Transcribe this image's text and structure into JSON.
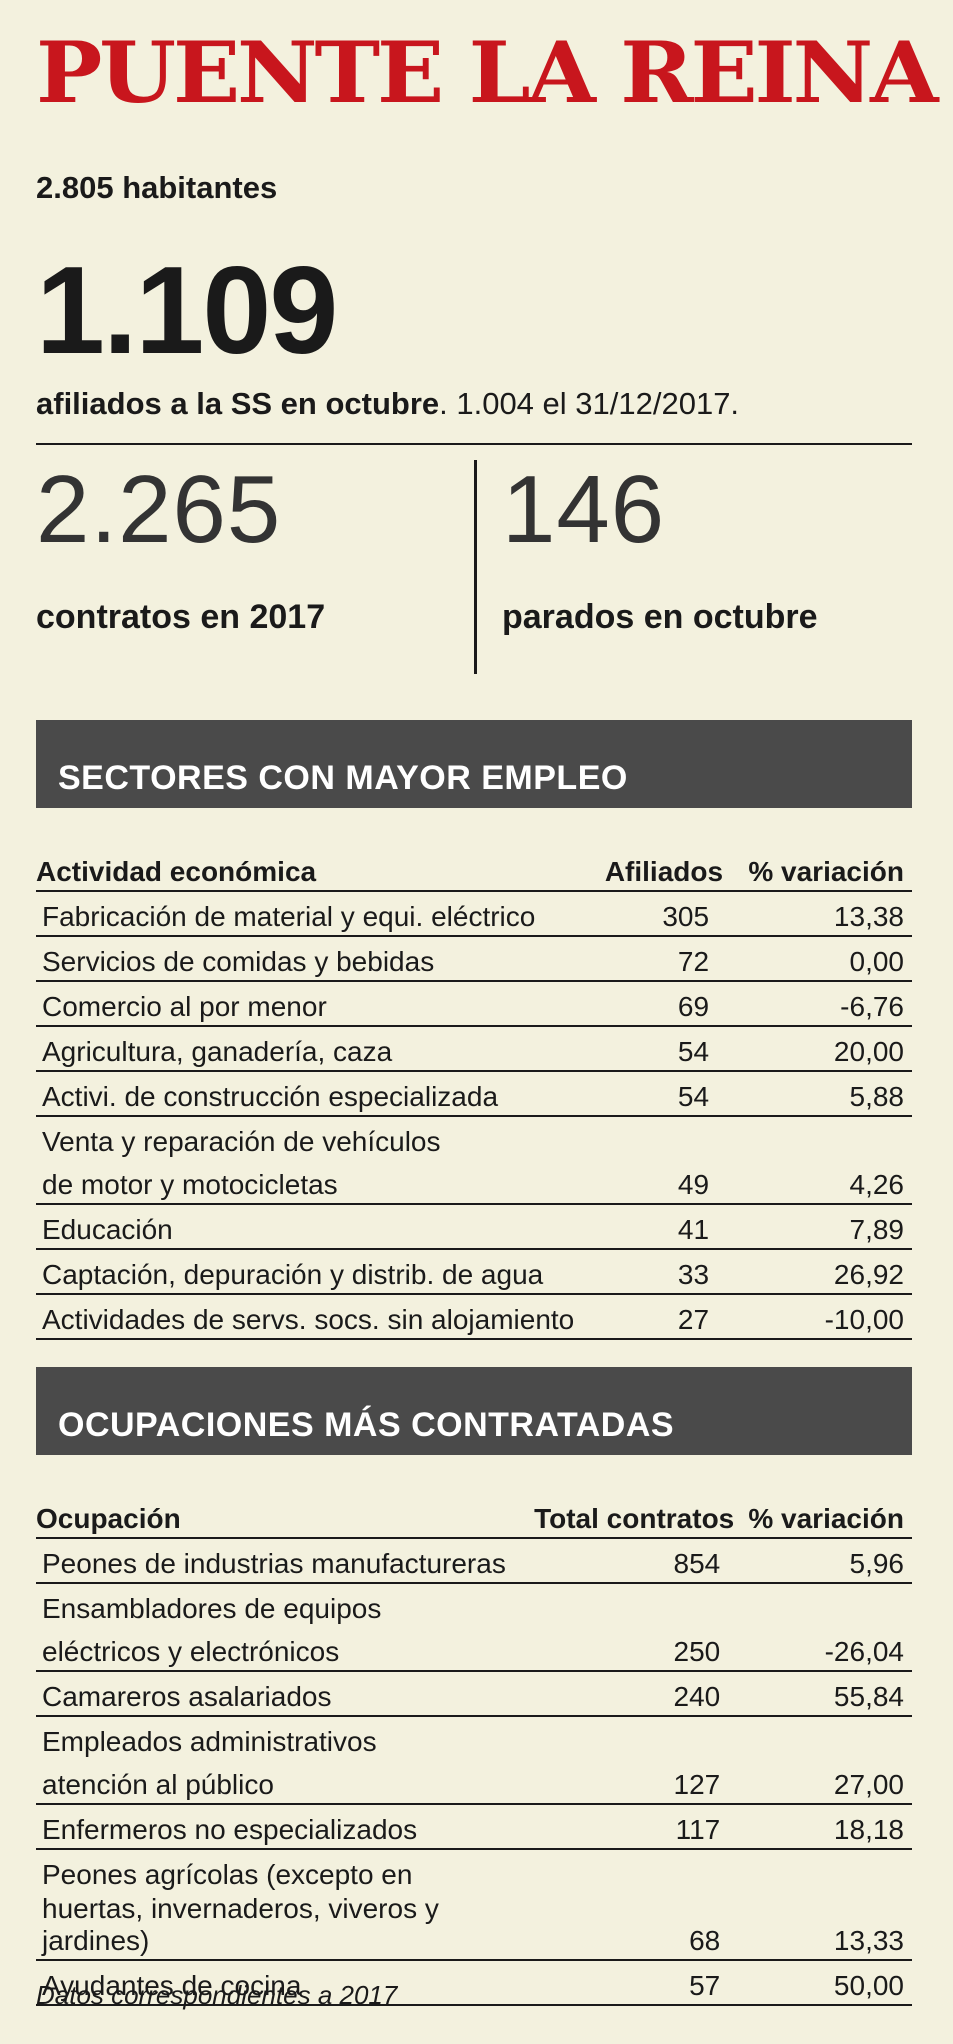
{
  "header": {
    "town": "PUENTE LA REINA",
    "habitantes": "2.805 habitantes",
    "afiliados_big": "1.109",
    "afiliados_bold": "afiliados  a la SS en octubre",
    "afiliados_rest": ". 1.004  el 31/12/2017."
  },
  "stats": {
    "contratos_value": "2.265",
    "contratos_label": "contratos en 2017",
    "parados_value": "146",
    "parados_label": "parados en octubre"
  },
  "sectores": {
    "title": "SECTORES CON MAYOR EMPLEO",
    "headers": [
      "Actividad económica",
      "Afiliados",
      "% variación"
    ],
    "rows": [
      [
        "Fabricación de material y equi. eléctrico",
        "305",
        "13,38"
      ],
      [
        "Servicios de comidas y bebidas",
        "72",
        "0,00"
      ],
      [
        "Comercio al por menor",
        "69",
        "-6,76"
      ],
      [
        "Agricultura, ganadería, caza",
        "54",
        "20,00"
      ],
      [
        "Activi. de construcción especializada",
        "54",
        "5,88"
      ],
      [
        "Venta y reparación de vehículos",
        "",
        ""
      ],
      [
        "de motor y motocicletas",
        "49",
        "4,26"
      ],
      [
        "Educación",
        "41",
        "7,89"
      ],
      [
        "Captación, depuración y distrib. de agua",
        "33",
        "26,92"
      ],
      [
        "Actividades de servs. socs. sin alojamiento",
        "27",
        "-10,00"
      ]
    ]
  },
  "ocupaciones": {
    "title": "OCUPACIONES MÁS CONTRATADAS",
    "headers": [
      "Ocupación",
      "Total contratos",
      "% variación"
    ],
    "rows": [
      [
        "Peones de industrias manufactureras",
        "854",
        "5,96"
      ],
      [
        "Ensambladores de equipos",
        "",
        ""
      ],
      [
        "eléctricos y electrónicos",
        "250",
        "-26,04"
      ],
      [
        "Camareros asalariados",
        "240",
        "55,84"
      ],
      [
        "Empleados administrativos",
        "",
        ""
      ],
      [
        "atención al público",
        "127",
        "27,00"
      ],
      [
        "Enfermeros no especializados",
        "117",
        "18,18"
      ],
      [
        "Peones agrícolas (excepto en",
        "",
        ""
      ],
      [
        "huertas, invernaderos, viveros y jardines)",
        "68",
        "13,33"
      ],
      [
        "Ayudantes de cocina",
        "57",
        "50,00"
      ]
    ]
  },
  "footer": {
    "note": "Datos correspondientes a 2017"
  }
}
